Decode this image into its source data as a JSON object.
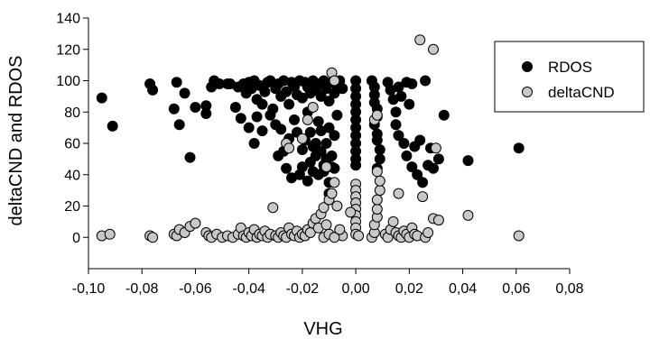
{
  "chart_data": {
    "type": "scatter",
    "title": "",
    "xlabel": "VHG",
    "ylabel": "deltaCND and RDOS",
    "xlim": [
      -0.1,
      0.08
    ],
    "ylim": [
      -20,
      140
    ],
    "x_ticks": [
      -0.1,
      -0.08,
      -0.06,
      -0.04,
      -0.02,
      0.0,
      0.02,
      0.04,
      0.06,
      0.08
    ],
    "x_tick_labels": [
      "-0,10",
      "-0,08",
      "-0,06",
      "-0,04",
      "-0,02",
      "0,00",
      "0,02",
      "0,04",
      "0,06",
      "0,08"
    ],
    "y_ticks": [
      0,
      20,
      40,
      60,
      80,
      100,
      120,
      140
    ],
    "y_tick_labels": [
      "0",
      "20",
      "40",
      "60",
      "80",
      "100",
      "120",
      "140"
    ],
    "grid": false,
    "legend_position": "top-right",
    "series": [
      {
        "name": "RDOS",
        "color": "#000000",
        "points": [
          [
            -0.095,
            89
          ],
          [
            -0.091,
            71
          ],
          [
            -0.077,
            98
          ],
          [
            -0.076,
            94
          ],
          [
            -0.068,
            82
          ],
          [
            -0.067,
            99
          ],
          [
            -0.066,
            72
          ],
          [
            -0.064,
            92
          ],
          [
            -0.062,
            51
          ],
          [
            -0.06,
            83
          ],
          [
            -0.056,
            84
          ],
          [
            -0.056,
            79
          ],
          [
            -0.054,
            96
          ],
          [
            -0.053,
            100
          ],
          [
            -0.051,
            98
          ],
          [
            -0.048,
            98
          ],
          [
            -0.047,
            98
          ],
          [
            -0.045,
            83
          ],
          [
            -0.044,
            96
          ],
          [
            -0.043,
            76
          ],
          [
            -0.042,
            98
          ],
          [
            -0.041,
            92
          ],
          [
            -0.04,
            99
          ],
          [
            -0.039,
            95
          ],
          [
            -0.038,
            100
          ],
          [
            -0.037,
            88
          ],
          [
            -0.037,
            77
          ],
          [
            -0.036,
            97
          ],
          [
            -0.035,
            85
          ],
          [
            -0.034,
            93
          ],
          [
            -0.033,
            99
          ],
          [
            -0.032,
            100
          ],
          [
            -0.031,
            82
          ],
          [
            -0.03,
            95
          ],
          [
            -0.029,
            98
          ],
          [
            -0.028,
            90
          ],
          [
            -0.028,
            69
          ],
          [
            -0.027,
            100
          ],
          [
            -0.026,
            93
          ],
          [
            -0.025,
            85
          ],
          [
            -0.024,
            99
          ],
          [
            -0.023,
            96
          ],
          [
            -0.022,
            91
          ],
          [
            -0.021,
            100
          ],
          [
            -0.02,
            89
          ],
          [
            -0.019,
            99
          ],
          [
            -0.018,
            96
          ],
          [
            -0.017,
            92
          ],
          [
            -0.016,
            100
          ],
          [
            -0.015,
            94
          ],
          [
            -0.014,
            98
          ],
          [
            -0.013,
            90
          ],
          [
            -0.012,
            100
          ],
          [
            -0.011,
            95
          ],
          [
            -0.01,
            87
          ],
          [
            -0.009,
            99
          ],
          [
            -0.008,
            92
          ],
          [
            -0.007,
            97
          ],
          [
            -0.006,
            100
          ],
          [
            -0.005,
            95
          ],
          [
            -0.04,
            70
          ],
          [
            -0.038,
            60
          ],
          [
            -0.035,
            68
          ],
          [
            -0.032,
            78
          ],
          [
            -0.03,
            72
          ],
          [
            -0.027,
            55
          ],
          [
            -0.025,
            63
          ],
          [
            -0.023,
            75
          ],
          [
            -0.022,
            67
          ],
          [
            -0.02,
            56
          ],
          [
            -0.018,
            80
          ],
          [
            -0.017,
            67
          ],
          [
            -0.016,
            58
          ],
          [
            -0.015,
            52
          ],
          [
            -0.014,
            74
          ],
          [
            -0.013,
            68
          ],
          [
            -0.012,
            46
          ],
          [
            -0.011,
            60
          ],
          [
            -0.01,
            70
          ],
          [
            -0.009,
            52
          ],
          [
            -0.008,
            65
          ],
          [
            -0.007,
            78
          ],
          [
            -0.024,
            38
          ],
          [
            -0.02,
            45
          ],
          [
            -0.019,
            62
          ],
          [
            -0.017,
            48
          ],
          [
            -0.016,
            42
          ],
          [
            -0.015,
            60
          ],
          [
            -0.014,
            40
          ],
          [
            -0.013,
            55
          ],
          [
            -0.012,
            42
          ],
          [
            -0.011,
            50
          ],
          [
            -0.01,
            35
          ],
          [
            -0.009,
            45
          ],
          [
            -0.008,
            44
          ],
          [
            -0.029,
            52
          ],
          [
            -0.026,
            44
          ],
          [
            -0.021,
            40
          ],
          [
            -0.018,
            36
          ],
          [
            -0.01,
            28
          ],
          [
            0.0,
            100
          ],
          [
            0.0,
            95
          ],
          [
            0.0,
            90
          ],
          [
            0.0,
            85
          ],
          [
            0.0,
            80
          ],
          [
            0.0,
            75
          ],
          [
            0.0,
            70
          ],
          [
            0.0,
            65
          ],
          [
            0.0,
            60
          ],
          [
            0.0,
            55
          ],
          [
            0.0,
            50
          ],
          [
            0.0,
            46
          ],
          [
            0.006,
            100
          ],
          [
            0.007,
            96
          ],
          [
            0.007,
            91
          ],
          [
            0.007,
            86
          ],
          [
            0.008,
            82
          ],
          [
            0.008,
            77
          ],
          [
            0.007,
            72
          ],
          [
            0.008,
            66
          ],
          [
            0.008,
            62
          ],
          [
            0.009,
            56
          ],
          [
            0.009,
            50
          ],
          [
            0.008,
            44
          ],
          [
            0.012,
            99
          ],
          [
            0.013,
            94
          ],
          [
            0.014,
            88
          ],
          [
            0.015,
            80
          ],
          [
            0.015,
            72
          ],
          [
            0.016,
            96
          ],
          [
            0.016,
            65
          ],
          [
            0.017,
            90
          ],
          [
            0.018,
            60
          ],
          [
            0.019,
            99
          ],
          [
            0.019,
            52
          ],
          [
            0.02,
            85
          ],
          [
            0.021,
            98
          ],
          [
            0.021,
            45
          ],
          [
            0.022,
            58
          ],
          [
            0.023,
            40
          ],
          [
            0.024,
            62
          ],
          [
            0.025,
            35
          ],
          [
            0.026,
            100
          ],
          [
            0.027,
            46
          ],
          [
            0.028,
            57
          ],
          [
            0.029,
            44
          ],
          [
            0.031,
            50
          ],
          [
            0.033,
            78
          ],
          [
            0.042,
            49
          ],
          [
            0.061,
            57
          ]
        ]
      },
      {
        "name": "deltaCND",
        "color": "#c8c8c8",
        "points": [
          [
            -0.095,
            1
          ],
          [
            -0.092,
            2
          ],
          [
            -0.077,
            1
          ],
          [
            -0.076,
            0
          ],
          [
            -0.068,
            2
          ],
          [
            -0.067,
            1
          ],
          [
            -0.066,
            5
          ],
          [
            -0.064,
            3
          ],
          [
            -0.062,
            7
          ],
          [
            -0.06,
            9
          ],
          [
            -0.056,
            3
          ],
          [
            -0.055,
            1
          ],
          [
            -0.054,
            0
          ],
          [
            -0.052,
            2
          ],
          [
            -0.05,
            0
          ],
          [
            -0.048,
            1
          ],
          [
            -0.046,
            0
          ],
          [
            -0.044,
            2
          ],
          [
            -0.043,
            6
          ],
          [
            -0.042,
            1
          ],
          [
            -0.041,
            0
          ],
          [
            -0.04,
            3
          ],
          [
            -0.039,
            1
          ],
          [
            -0.038,
            5
          ],
          [
            -0.037,
            0
          ],
          [
            -0.036,
            2
          ],
          [
            -0.035,
            1
          ],
          [
            -0.034,
            4
          ],
          [
            -0.033,
            0
          ],
          [
            -0.032,
            2
          ],
          [
            -0.031,
            19
          ],
          [
            -0.03,
            1
          ],
          [
            -0.029,
            0
          ],
          [
            -0.028,
            3
          ],
          [
            -0.027,
            1
          ],
          [
            -0.026,
            0
          ],
          [
            -0.025,
            6
          ],
          [
            -0.024,
            2
          ],
          [
            -0.023,
            1
          ],
          [
            -0.022,
            4
          ],
          [
            -0.021,
            0
          ],
          [
            -0.02,
            2
          ],
          [
            -0.019,
            1
          ],
          [
            -0.018,
            5
          ],
          [
            -0.017,
            3
          ],
          [
            -0.016,
            9
          ],
          [
            -0.015,
            12
          ],
          [
            -0.014,
            6
          ],
          [
            -0.013,
            15
          ],
          [
            -0.012,
            19
          ],
          [
            -0.011,
            8
          ],
          [
            -0.01,
            24
          ],
          [
            -0.009,
            28
          ],
          [
            -0.008,
            35
          ],
          [
            -0.007,
            20
          ],
          [
            -0.006,
            3
          ],
          [
            -0.005,
            1
          ],
          [
            -0.026,
            60
          ],
          [
            -0.025,
            57
          ],
          [
            -0.02,
            63
          ],
          [
            -0.018,
            75
          ],
          [
            -0.016,
            83
          ],
          [
            -0.011,
            45
          ],
          [
            -0.009,
            105
          ],
          [
            -0.008,
            100
          ],
          [
            -0.012,
            0
          ],
          [
            -0.01,
            2
          ],
          [
            -0.008,
            0
          ],
          [
            -0.006,
            5
          ],
          [
            0.0,
            34
          ],
          [
            0.0,
            30
          ],
          [
            0.0,
            26
          ],
          [
            0.0,
            22
          ],
          [
            0.0,
            18
          ],
          [
            0.0,
            14
          ],
          [
            0.0,
            10
          ],
          [
            0.0,
            6
          ],
          [
            0.0,
            2
          ],
          [
            -0.002,
            16
          ],
          [
            0.001,
            1
          ],
          [
            0.006,
            0
          ],
          [
            0.007,
            3
          ],
          [
            0.007,
            8
          ],
          [
            0.008,
            13
          ],
          [
            0.008,
            18
          ],
          [
            0.008,
            24
          ],
          [
            0.009,
            30
          ],
          [
            0.009,
            36
          ],
          [
            0.008,
            42
          ],
          [
            0.007,
            75
          ],
          [
            0.008,
            78
          ],
          [
            0.011,
            2
          ],
          [
            0.012,
            0
          ],
          [
            0.013,
            5
          ],
          [
            0.014,
            10
          ],
          [
            0.015,
            3
          ],
          [
            0.016,
            1
          ],
          [
            0.016,
            28
          ],
          [
            0.017,
            0
          ],
          [
            0.018,
            4
          ],
          [
            0.019,
            2
          ],
          [
            0.02,
            0
          ],
          [
            0.021,
            6
          ],
          [
            0.022,
            2
          ],
          [
            0.023,
            1
          ],
          [
            0.025,
            26
          ],
          [
            0.026,
            0
          ],
          [
            0.027,
            3
          ],
          [
            0.029,
            12
          ],
          [
            0.031,
            11
          ],
          [
            0.03,
            57
          ],
          [
            0.024,
            126
          ],
          [
            0.029,
            120
          ],
          [
            0.042,
            14
          ],
          [
            0.061,
            1
          ]
        ]
      }
    ]
  }
}
